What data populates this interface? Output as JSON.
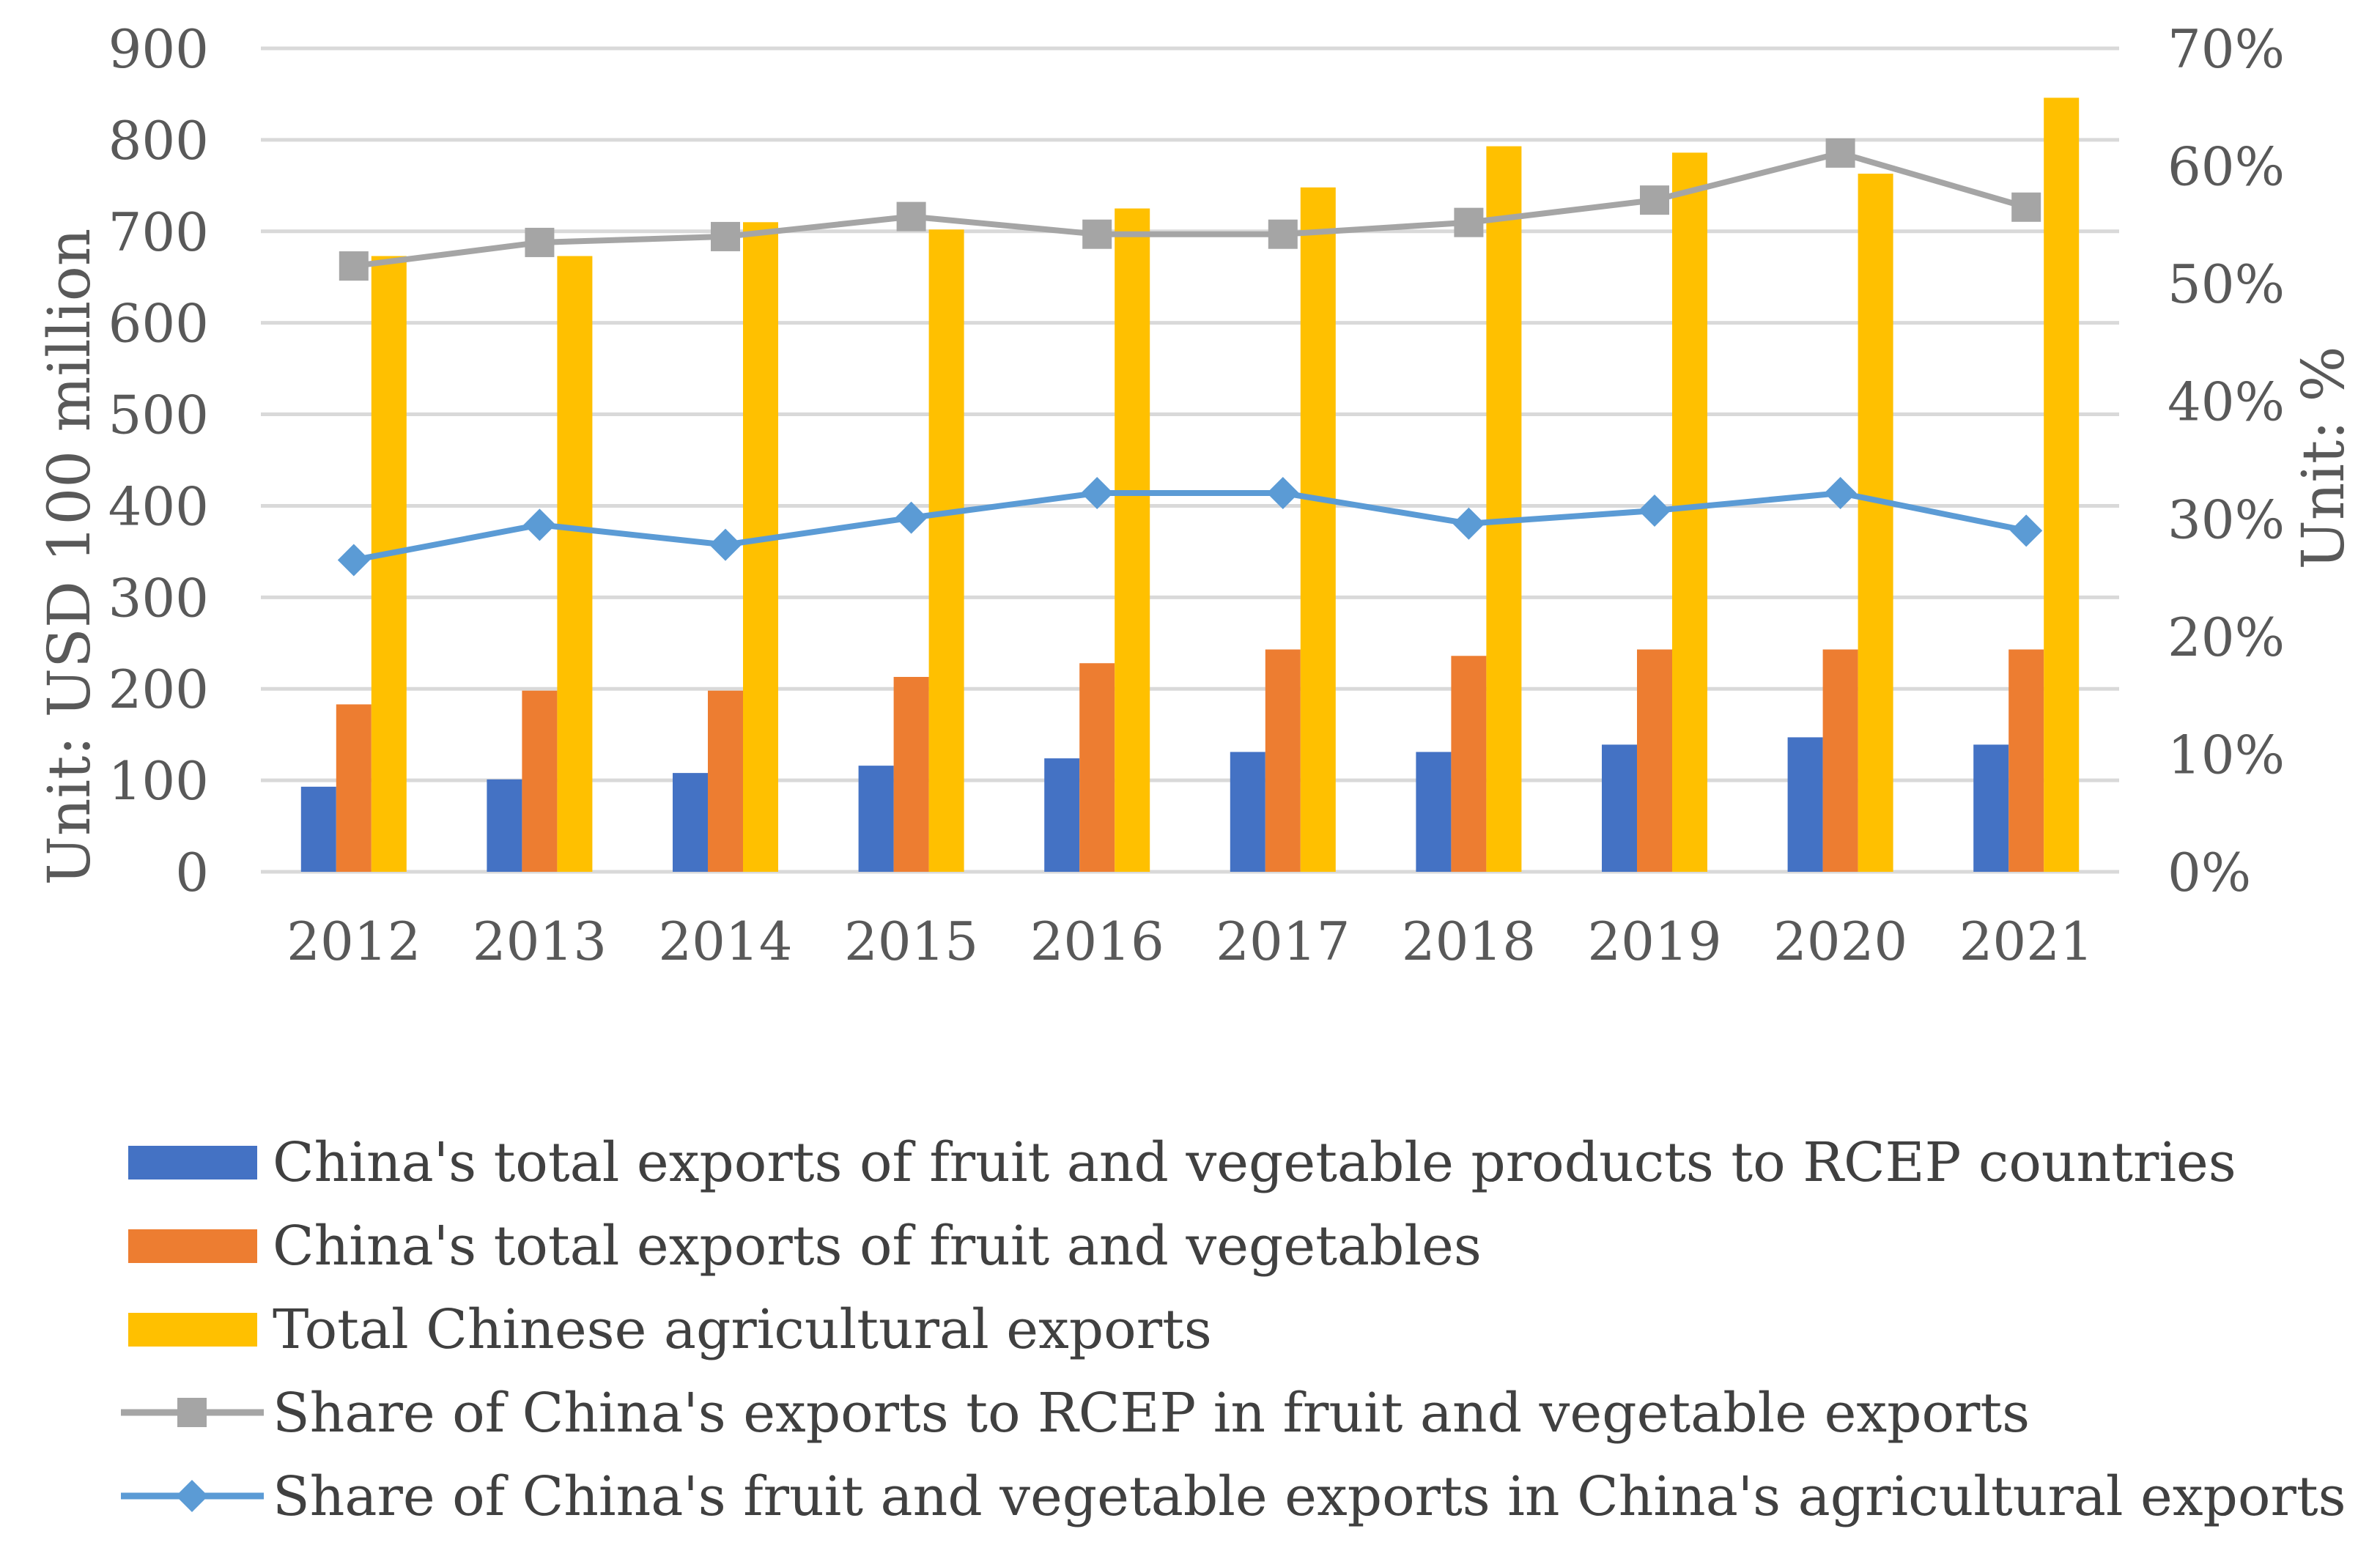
{
  "chart_data": {
    "type": "bar",
    "categories": [
      "2012",
      "2013",
      "2014",
      "2015",
      "2016",
      "2017",
      "2018",
      "2019",
      "2020",
      "2021"
    ],
    "left_axis": {
      "label": "Unit: USD 100 million",
      "range": [
        0,
        900
      ],
      "ticks": [
        "0",
        "100",
        "200",
        "300",
        "400",
        "500",
        "600",
        "700",
        "800",
        "900"
      ]
    },
    "right_axis": {
      "label": "Unit: %",
      "range": [
        0,
        70
      ],
      "ticks": [
        "0%",
        "10%",
        "20%",
        "30%",
        "40%",
        "50%",
        "60%",
        "70%"
      ]
    },
    "series": [
      {
        "name": "China's total exports of fruit and vegetable products to RCEP countries",
        "kind": "bar",
        "axis": "left",
        "color": "#4472C4",
        "values": [
          93,
          101,
          108,
          116,
          124,
          131,
          131,
          139,
          147,
          139
        ]
      },
      {
        "name": "China's total exports of fruit and vegetables",
        "kind": "bar",
        "axis": "left",
        "color": "#ED7D31",
        "values": [
          183,
          198,
          198,
          213,
          228,
          243,
          236,
          243,
          243,
          243
        ]
      },
      {
        "name": "Total Chinese agricultural exports",
        "kind": "bar",
        "axis": "left",
        "color": "#FFC000",
        "values": [
          673,
          673,
          710,
          702,
          725,
          748,
          793,
          786,
          763,
          846
        ]
      },
      {
        "name": "Share of China's exports to RCEP in fruit and vegetable exports",
        "kind": "line",
        "axis": "right",
        "color": "#A5A5A5",
        "marker": "square",
        "values": [
          51.5,
          53.5,
          54.0,
          55.7,
          54.2,
          54.2,
          55.2,
          57.1,
          61.1,
          56.5
        ]
      },
      {
        "name": "Share of China's fruit and vegetable exports in China's agricultural exports",
        "kind": "line",
        "axis": "right",
        "color": "#5B9BD5",
        "marker": "diamond",
        "values": [
          26.5,
          29.5,
          27.8,
          30.1,
          32.2,
          32.2,
          29.6,
          30.7,
          32.2,
          29.0
        ]
      }
    ]
  }
}
